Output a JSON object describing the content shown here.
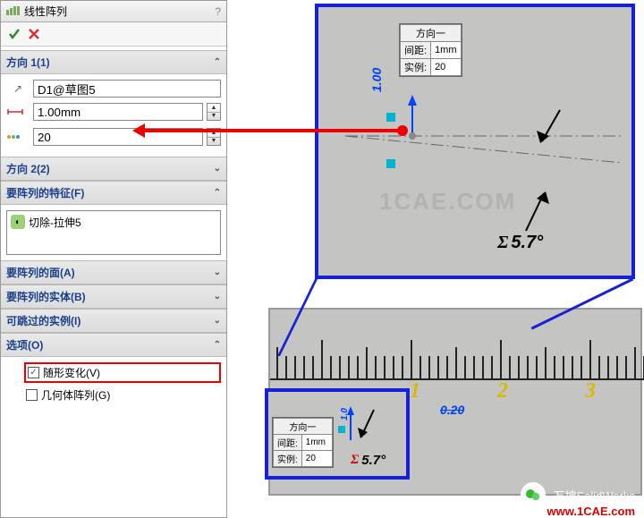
{
  "title": "线性阵列",
  "dir1": {
    "header": "方向 1(1)",
    "ref": "D1@草图5",
    "dist": "1.00mm",
    "count": "20"
  },
  "dir2": {
    "header": "方向 2(2)"
  },
  "features": {
    "header": "要阵列的特征(F)",
    "item": "切除-拉伸5"
  },
  "faces": {
    "header": "要阵列的面(A)"
  },
  "bodies": {
    "header": "要阵列的实体(B)"
  },
  "skip": {
    "header": "可跳过的实例(I)"
  },
  "options": {
    "header": "选项(O)",
    "vary": "随形变化(V)",
    "geo": "几何体阵列(G)"
  },
  "canvas": {
    "popup_title": "方向一",
    "popup_dist_label": "间距:",
    "popup_dist_val": "1mm",
    "popup_count_label": "实例:",
    "popup_count_val": "20",
    "sigma": "Σ",
    "angle": "5.7°",
    "dim100": "1.00",
    "dim020": "0.20",
    "r1": "1",
    "r2": "2",
    "r3": "3"
  },
  "watermark": "1CAE.COM",
  "brand": "万坤SolidWorks",
  "url": "www.1CAE.com",
  "colors": {
    "blue": "#1520d8",
    "red": "#e00000",
    "yellow": "#d8b800",
    "cyan": "#00b4d0"
  }
}
